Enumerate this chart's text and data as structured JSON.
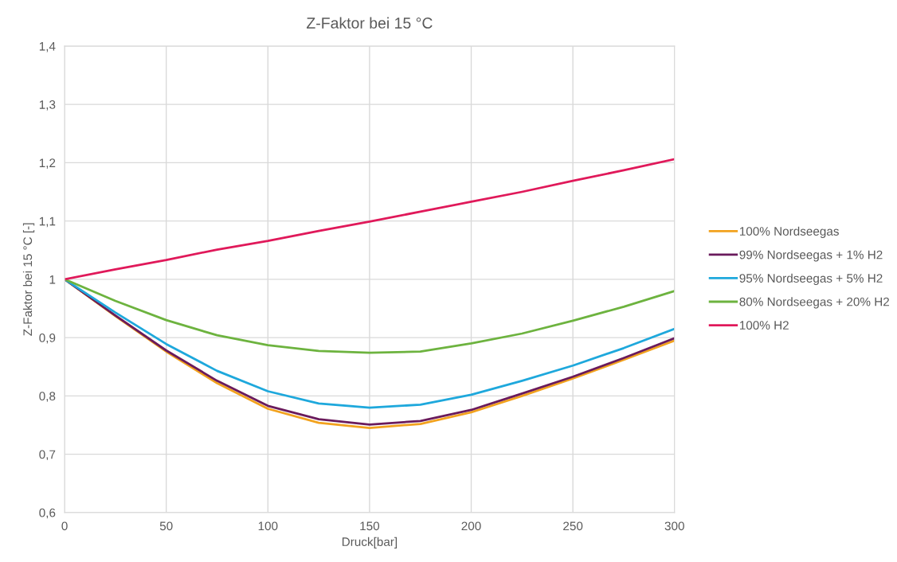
{
  "chart_data": {
    "type": "line",
    "title": "Z-Faktor bei 15 °C",
    "xlabel": "Druck[bar]",
    "ylabel": "Z-Faktor bei 15 °C [-]",
    "x": [
      0,
      25,
      50,
      75,
      100,
      125,
      150,
      175,
      200,
      225,
      250,
      275,
      300
    ],
    "series": [
      {
        "name": "100% Nordseegas",
        "color": "#f2a21e",
        "values": [
          1,
          0.937,
          0.876,
          0.822,
          0.778,
          0.754,
          0.745,
          0.752,
          0.772,
          0.8,
          0.83,
          0.862,
          0.895
        ]
      },
      {
        "name": "99% Nordseegas + 1% H2",
        "color": "#6a1b5c",
        "values": [
          1,
          0.938,
          0.878,
          0.826,
          0.783,
          0.76,
          0.751,
          0.757,
          0.776,
          0.804,
          0.833,
          0.865,
          0.899
        ]
      },
      {
        "name": "95% Nordseegas + 5% H2",
        "color": "#1ea8dc",
        "values": [
          1,
          0.943,
          0.889,
          0.843,
          0.808,
          0.787,
          0.78,
          0.785,
          0.802,
          0.826,
          0.852,
          0.882,
          0.915
        ]
      },
      {
        "name": "80% Nordseegas + 20% H2",
        "color": "#6db33f",
        "values": [
          1,
          0.963,
          0.93,
          0.904,
          0.887,
          0.877,
          0.874,
          0.876,
          0.89,
          0.907,
          0.929,
          0.953,
          0.98
        ]
      },
      {
        "name": "100% H2",
        "color": "#e0195a",
        "values": [
          1,
          1.017,
          1.033,
          1.051,
          1.066,
          1.083,
          1.099,
          1.116,
          1.133,
          1.15,
          1.169,
          1.187,
          1.206
        ]
      }
    ],
    "xlim": [
      0,
      300
    ],
    "xticks": [
      0,
      50,
      100,
      150,
      200,
      250,
      300
    ],
    "ylim": [
      0.6,
      1.4
    ],
    "yticks": [
      {
        "value": 0.6,
        "label": "0,6"
      },
      {
        "value": 0.7,
        "label": "0,7"
      },
      {
        "value": 0.8,
        "label": "0,8"
      },
      {
        "value": 0.9,
        "label": "0,9"
      },
      1,
      {
        "value": 1.1,
        "label": "1,1"
      },
      {
        "value": 1.2,
        "label": "1,2"
      },
      {
        "value": 1.3,
        "label": "1,3"
      },
      {
        "value": 1.4,
        "label": "1,4"
      }
    ],
    "grid": true,
    "legend": "right",
    "marker": "none",
    "line_style": "solid"
  }
}
